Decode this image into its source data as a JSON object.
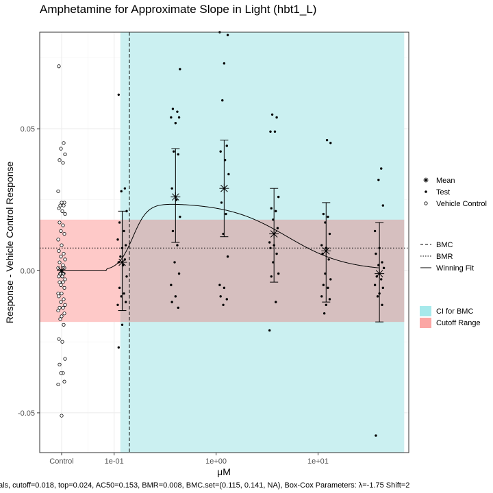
{
  "chart_data": {
    "type": "scatter",
    "title": "Amphetamine for Approximate Slope in Light (hbt1_L)",
    "xlabel": "μM",
    "ylabel": "Response - Vehicle Control Response",
    "caption": "als, cutoff=0.018, top=0.024, AC50=0.153, BMR=0.008, BMC.set=(0.115, 0.141, NA), Box-Cox Parameters: λ=-1.75 Shift=2",
    "x_scale": "log10",
    "x_ticks": [
      {
        "label": "Control",
        "value": null
      },
      {
        "label": "1e-01",
        "value": 0.1
      },
      {
        "label": "1e+00",
        "value": 1
      },
      {
        "label": "1e+01",
        "value": 10
      }
    ],
    "y_ticks": [
      {
        "label": "-0.05",
        "value": -0.05
      },
      {
        "label": "0.00",
        "value": 0
      },
      {
        "label": "0.05",
        "value": 0.05
      }
    ],
    "ylim": [
      -0.064,
      0.084
    ],
    "xlim_log10": [
      -1.73,
      1.89
    ],
    "grid": true,
    "legend_position": "right",
    "legend_groups": [
      {
        "items": [
          {
            "key": "mean",
            "label": "Mean",
            "marker": "asterisk"
          },
          {
            "key": "test",
            "label": "Test",
            "marker": "filled-circle"
          },
          {
            "key": "vehicle",
            "label": "Vehicle Control",
            "marker": "open-circle"
          }
        ]
      },
      {
        "items": [
          {
            "key": "bmc",
            "label": "BMC",
            "line": "dashed"
          },
          {
            "key": "bmr",
            "label": "BMR",
            "line": "dotted"
          },
          {
            "key": "fit",
            "label": "Winning Fit",
            "line": "solid"
          }
        ]
      },
      {
        "items": [
          {
            "key": "ci",
            "label": "CI for BMC",
            "color": "#a6e9eb"
          },
          {
            "key": "cutoff",
            "label": "Cutoff Range",
            "color": "#fba6a4"
          }
        ]
      }
    ],
    "colors": {
      "ci_bmc": "#cbf0f1",
      "cutoff": "#fec9c8",
      "overlap": "#d6bfbf"
    },
    "cutoff": 0.018,
    "bmr": 0.008,
    "bmc": 0.141,
    "ci_bmc": [
      0.115,
      70
    ],
    "hill_fit": {
      "top": 0.024,
      "ac50": 0.153,
      "n": 6
    },
    "hill_fit_descent": {
      "midpoint": 5.0,
      "n": 1.5
    },
    "control_points": [
      0.072,
      0.045,
      0.043,
      0.041,
      0.039,
      0.038,
      0.028,
      0.024,
      0.024,
      0.023,
      0.023,
      0.022,
      0.021,
      0.02,
      0.017,
      0.016,
      0.014,
      0.013,
      0.011,
      0.009,
      0.007,
      0.006,
      0.005,
      0.004,
      0.003,
      0.002,
      0.001,
      0.001,
      0.0,
      -0.001,
      -0.001,
      -0.002,
      -0.002,
      -0.003,
      -0.004,
      -0.004,
      -0.005,
      -0.006,
      -0.008,
      -0.008,
      -0.009,
      -0.01,
      -0.011,
      -0.012,
      -0.013,
      -0.013,
      -0.014,
      -0.015,
      -0.016,
      -0.017,
      -0.019,
      -0.024,
      -0.025,
      -0.031,
      -0.033,
      -0.036,
      -0.036,
      -0.039,
      -0.04,
      -0.051
    ],
    "doses": [
      {
        "conc": 0.12,
        "mean": 0.003,
        "ci": [
          -0.014,
          0.021
        ],
        "points": [
          0.062,
          0.029,
          0.028,
          0.021,
          0.017,
          0.014,
          0.011,
          0.009,
          0.008,
          0.005,
          0.004,
          0.003,
          0.002,
          -0.002,
          -0.006,
          -0.008,
          -0.009,
          -0.011,
          -0.012,
          -0.019,
          -0.027
        ]
      },
      {
        "conc": 0.4,
        "mean": 0.026,
        "ci": [
          0.01,
          0.043
        ],
        "points": [
          0.071,
          0.057,
          0.056,
          0.054,
          0.054,
          0.052,
          0.042,
          0.041,
          0.029,
          0.025,
          0.019,
          0.014,
          0.009,
          0.003,
          -0.001,
          -0.005,
          -0.009,
          -0.011,
          -0.013
        ]
      },
      {
        "conc": 1.2,
        "mean": 0.029,
        "ci": [
          0.012,
          0.046
        ],
        "points": [
          0.084,
          0.083,
          0.073,
          0.06,
          0.044,
          0.042,
          0.039,
          0.034,
          0.024,
          0.02,
          0.013,
          0.005,
          -0.005,
          -0.006,
          -0.009,
          -0.01,
          -0.012
        ]
      },
      {
        "conc": 3.7,
        "mean": 0.013,
        "ci": [
          -0.004,
          0.029
        ],
        "points": [
          0.055,
          0.054,
          0.049,
          0.049,
          0.026,
          0.022,
          0.021,
          0.018,
          0.015,
          0.01,
          0.009,
          0.008,
          0.006,
          0.003,
          -0.001,
          -0.002,
          -0.011,
          -0.021
        ]
      },
      {
        "conc": 12,
        "mean": 0.007,
        "ci": [
          -0.011,
          0.024
        ],
        "points": [
          0.046,
          0.045,
          0.02,
          0.019,
          0.017,
          0.013,
          0.009,
          0.008,
          0.006,
          0.004,
          -0.001,
          -0.003,
          -0.005,
          -0.006,
          -0.009,
          -0.01,
          -0.012,
          -0.015
        ]
      },
      {
        "conc": 40,
        "mean": -0.001,
        "ci": [
          -0.018,
          0.017
        ],
        "points": [
          0.036,
          0.032,
          0.023,
          0.014,
          0.008,
          0.006,
          0.003,
          0.002,
          0.001,
          -0.002,
          -0.003,
          -0.005,
          -0.006,
          -0.008,
          -0.009,
          -0.012,
          -0.058
        ]
      }
    ]
  }
}
